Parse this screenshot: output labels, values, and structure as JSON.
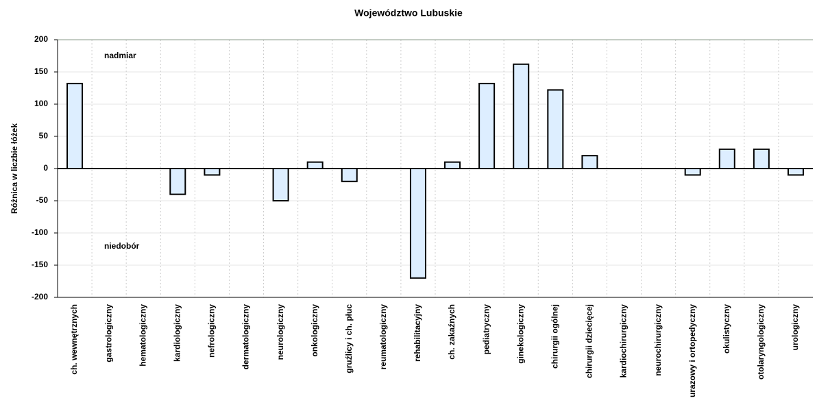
{
  "chart_data": {
    "type": "bar",
    "title": "Województwo Lubuskie",
    "ylabel": "Różnica w liczbie łóżek",
    "annotations": [
      "nadmiar",
      "niedobór"
    ],
    "categories": [
      "ch. wewnętrznych",
      "gastrologiczny",
      "hematologiczny",
      "kardiologiczny",
      "nefrologiczny",
      "dermatologiczny",
      "neurologiczny",
      "onkologiczny",
      "gruźlicy i ch. płuc",
      "reumatologiczny",
      "rehabilitacyjny",
      "ch. zakaźnych",
      "pediatryczny",
      "ginekologiczny",
      "chirurgii ogólnej",
      "chirurgii dziecięcej",
      "kardiochirurgiczny",
      "neurochirurgiczny",
      "urazowy i ortopedyczny",
      "okulistyczny",
      "otolaryngologiczny",
      "urologiczny"
    ],
    "values": [
      132,
      0,
      0,
      -40,
      -10,
      0,
      -50,
      10,
      -20,
      0,
      -170,
      10,
      132,
      162,
      122,
      20,
      0,
      0,
      -10,
      30,
      30,
      -10
    ],
    "color": "#ddeeff",
    "ylim": [
      -200,
      200
    ],
    "yticks": [
      -200,
      -150,
      -100,
      -50,
      0,
      50,
      100,
      150,
      200
    ],
    "grid": true
  }
}
